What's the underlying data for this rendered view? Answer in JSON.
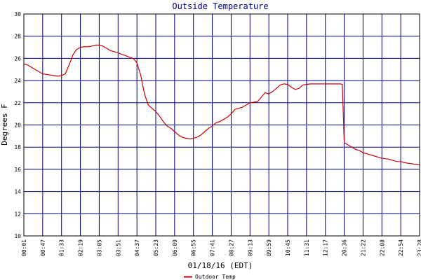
{
  "chart_data": {
    "type": "line",
    "title": "Outside Temperature",
    "xlabel": "01/18/16 (EDT)",
    "ylabel": "Degrees F",
    "ylim": [
      10,
      30
    ],
    "y_ticks": [
      "10",
      "12",
      "14",
      "16",
      "18",
      "20",
      "22",
      "24",
      "26",
      "28",
      "30"
    ],
    "x_ticks": [
      "00:01",
      "00:47",
      "01:33",
      "02:19",
      "03:05",
      "03:51",
      "04:37",
      "05:23",
      "06:09",
      "06:55",
      "07:41",
      "08:27",
      "09:13",
      "09:59",
      "10:45",
      "11:31",
      "12:17",
      "20:36",
      "21:22",
      "22:08",
      "22:54",
      "23:28"
    ],
    "grid": true,
    "legend_placement": "bottom-center",
    "colors": {
      "plot_background": "#ffffff",
      "grid": "#000080",
      "axes": "#000000",
      "title": "#000080",
      "series": "#cc0000"
    },
    "series": [
      {
        "name": "Outdoor Temp",
        "color": "#cc0000",
        "x": [
          0.0,
          0.2,
          0.4,
          0.6,
          0.8,
          1.0,
          1.2,
          1.4,
          1.6,
          1.8,
          2.0,
          2.2,
          2.4,
          2.6,
          2.8,
          3.0,
          3.2,
          3.4,
          3.6,
          3.8,
          4.0,
          4.2,
          4.4,
          4.6,
          4.8,
          5.0,
          5.2,
          5.4,
          5.6,
          5.8,
          6.0,
          6.2,
          6.4,
          6.6,
          6.8,
          7.0,
          7.2,
          7.4,
          7.6,
          7.8,
          8.0,
          8.2,
          8.4,
          8.6,
          8.8,
          9.0,
          9.2,
          9.4,
          9.6,
          9.8,
          10.0,
          10.2,
          10.4,
          10.6,
          10.8,
          11.0,
          11.2,
          11.4,
          11.6,
          11.8,
          12.0,
          12.2,
          12.4,
          12.6,
          12.8,
          13.0,
          13.2,
          13.4,
          13.6,
          13.8,
          14.0,
          14.2,
          14.4,
          14.6,
          14.8,
          15.0,
          15.2,
          15.4,
          15.6,
          15.8,
          16.0,
          16.2,
          16.4,
          16.6,
          16.8,
          16.9,
          17.0,
          17.2,
          17.4,
          17.6,
          17.8,
          18.0,
          18.2,
          18.4,
          18.6,
          18.8,
          19.0,
          19.2,
          19.4,
          19.6,
          19.8,
          20.0,
          20.2,
          20.4,
          20.6,
          20.8,
          21.0
        ],
        "values": [
          25.5,
          25.4,
          25.2,
          25.0,
          24.8,
          24.6,
          24.55,
          24.5,
          24.45,
          24.4,
          24.45,
          24.6,
          25.4,
          26.3,
          26.8,
          27.0,
          27.05,
          27.05,
          27.1,
          27.2,
          27.2,
          27.1,
          26.9,
          26.7,
          26.6,
          26.5,
          26.35,
          26.25,
          26.1,
          26.0,
          25.6,
          24.5,
          22.8,
          21.8,
          21.5,
          21.2,
          20.8,
          20.3,
          19.9,
          19.7,
          19.4,
          19.1,
          18.9,
          18.8,
          18.75,
          18.8,
          18.9,
          19.1,
          19.4,
          19.7,
          19.9,
          20.2,
          20.3,
          20.5,
          20.7,
          21.0,
          21.4,
          21.5,
          21.6,
          21.8,
          22.0,
          22.05,
          22.1,
          22.5,
          22.9,
          22.8,
          23.0,
          23.3,
          23.6,
          23.7,
          23.65,
          23.4,
          23.2,
          23.3,
          23.6,
          23.65,
          23.7,
          23.7,
          23.7,
          23.7,
          23.7,
          23.7,
          23.7,
          23.7,
          23.7,
          23.65,
          18.4,
          18.2,
          18.0,
          17.8,
          17.7,
          17.5,
          17.4,
          17.3,
          17.2,
          17.1,
          17.0,
          16.95,
          16.9,
          16.8,
          16.7,
          16.7,
          16.6,
          16.55,
          16.5,
          16.45,
          16.4
        ]
      }
    ]
  }
}
